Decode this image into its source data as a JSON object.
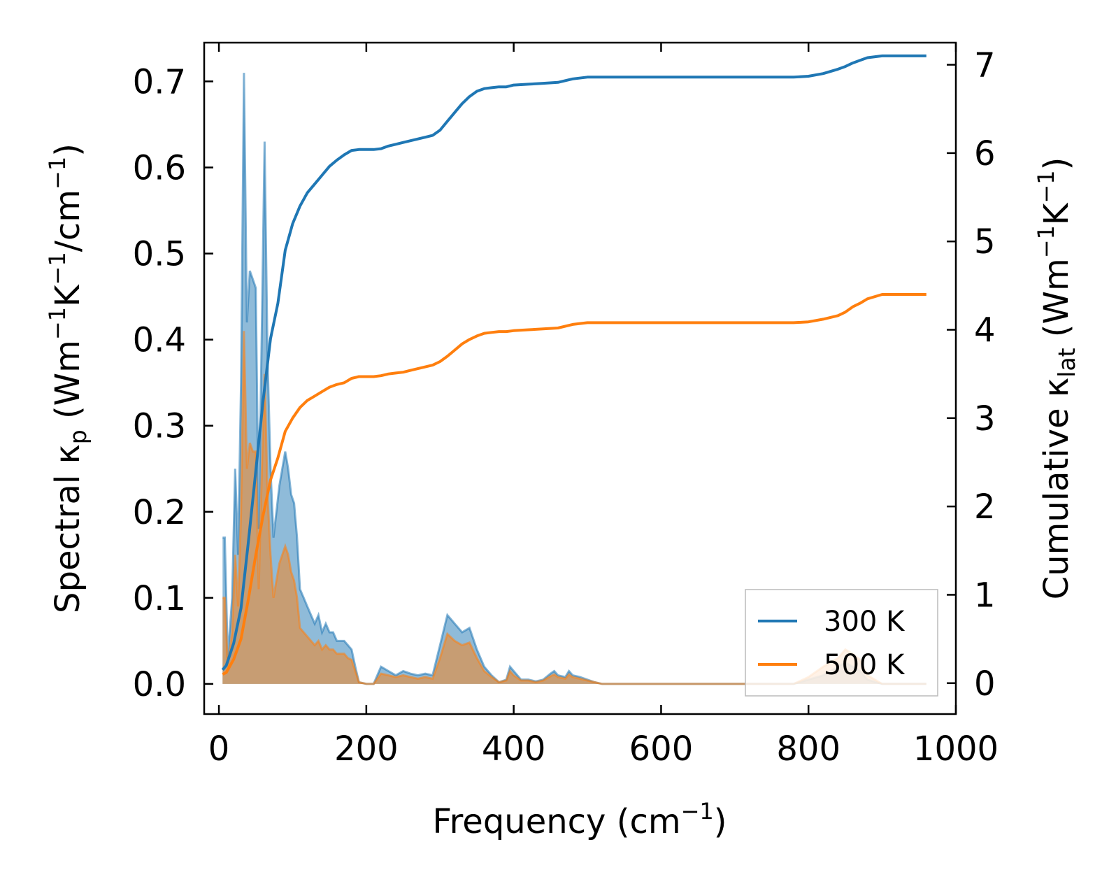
{
  "chart_data": {
    "type": "line+area",
    "xlabel": "Frequency (cm⁻¹)",
    "ylabel_left": "Spectral κ_p (Wm⁻¹K⁻¹/cm⁻¹)",
    "ylabel_right": "Cumulative κ_lat (Wm⁻¹K⁻¹)",
    "xlim": [
      -20,
      1000
    ],
    "ylim_left": [
      -0.035,
      0.745
    ],
    "ylim_right": [
      -0.35,
      7.25
    ],
    "x_ticks": [
      0,
      200,
      400,
      600,
      800,
      1000
    ],
    "y_left_ticks": [
      "0.0",
      "0.1",
      "0.2",
      "0.3",
      "0.4",
      "0.5",
      "0.6",
      "0.7"
    ],
    "y_right_ticks": [
      "0",
      "1",
      "2",
      "3",
      "4",
      "5",
      "6",
      "7"
    ],
    "colors": {
      "300K": "#1f77b4",
      "500K": "#ff7f0e"
    },
    "legend": {
      "position": "lower-right",
      "entries": [
        "300 K",
        "500 K"
      ]
    },
    "spectral_series": [
      {
        "name": "300 K spectral",
        "x": [
          5,
          8,
          12,
          18,
          22,
          26,
          30,
          34,
          38,
          42,
          46,
          50,
          54,
          58,
          62,
          66,
          70,
          74,
          78,
          82,
          86,
          90,
          94,
          98,
          102,
          106,
          110,
          115,
          120,
          125,
          130,
          135,
          140,
          145,
          150,
          155,
          160,
          165,
          170,
          175,
          180,
          185,
          190,
          200,
          210,
          220,
          230,
          240,
          250,
          260,
          270,
          280,
          290,
          300,
          310,
          320,
          330,
          340,
          350,
          360,
          370,
          380,
          390,
          395,
          400,
          410,
          420,
          430,
          440,
          450,
          455,
          460,
          470,
          475,
          480,
          490,
          500,
          510,
          520,
          600,
          700,
          780,
          800,
          820,
          840,
          850,
          860,
          870,
          880,
          900,
          960
        ],
        "y": [
          0.17,
          0.17,
          0.03,
          0.1,
          0.25,
          0.15,
          0.35,
          0.71,
          0.42,
          0.48,
          0.47,
          0.46,
          0.18,
          0.4,
          0.63,
          0.38,
          0.25,
          0.17,
          0.2,
          0.23,
          0.25,
          0.27,
          0.25,
          0.22,
          0.21,
          0.17,
          0.11,
          0.1,
          0.09,
          0.08,
          0.07,
          0.08,
          0.06,
          0.07,
          0.06,
          0.06,
          0.05,
          0.05,
          0.05,
          0.045,
          0.04,
          0.02,
          0.002,
          0.0,
          0.0,
          0.02,
          0.015,
          0.01,
          0.015,
          0.012,
          0.01,
          0.012,
          0.01,
          0.045,
          0.08,
          0.07,
          0.06,
          0.065,
          0.04,
          0.02,
          0.01,
          0.002,
          0.005,
          0.02,
          0.015,
          0.005,
          0.005,
          0.003,
          0.005,
          0.012,
          0.015,
          0.01,
          0.008,
          0.015,
          0.01,
          0.008,
          0.005,
          0.002,
          0.0,
          0.0,
          0.0,
          0.0,
          0.005,
          0.01,
          0.02,
          0.025,
          0.02,
          0.015,
          0.005,
          0.0,
          0.0
        ]
      },
      {
        "name": "500 K spectral",
        "x": [
          5,
          8,
          12,
          18,
          22,
          26,
          30,
          34,
          38,
          42,
          46,
          50,
          54,
          58,
          62,
          66,
          70,
          74,
          78,
          82,
          86,
          90,
          94,
          98,
          102,
          106,
          110,
          115,
          120,
          125,
          130,
          135,
          140,
          145,
          150,
          155,
          160,
          165,
          170,
          175,
          180,
          185,
          190,
          200,
          210,
          220,
          230,
          240,
          250,
          260,
          270,
          280,
          290,
          300,
          310,
          320,
          330,
          340,
          350,
          360,
          370,
          380,
          390,
          395,
          400,
          410,
          420,
          430,
          440,
          450,
          455,
          460,
          470,
          475,
          480,
          490,
          500,
          510,
          520,
          600,
          700,
          780,
          800,
          820,
          840,
          850,
          860,
          870,
          880,
          900,
          960
        ],
        "y": [
          0.1,
          0.1,
          0.02,
          0.06,
          0.15,
          0.09,
          0.2,
          0.41,
          0.25,
          0.28,
          0.27,
          0.27,
          0.11,
          0.24,
          0.36,
          0.22,
          0.15,
          0.1,
          0.12,
          0.14,
          0.15,
          0.16,
          0.15,
          0.13,
          0.12,
          0.1,
          0.065,
          0.06,
          0.055,
          0.05,
          0.045,
          0.05,
          0.04,
          0.045,
          0.04,
          0.04,
          0.035,
          0.035,
          0.035,
          0.03,
          0.028,
          0.015,
          0.002,
          0.0,
          0.0,
          0.012,
          0.01,
          0.008,
          0.01,
          0.008,
          0.006,
          0.008,
          0.006,
          0.03,
          0.058,
          0.05,
          0.045,
          0.048,
          0.03,
          0.015,
          0.008,
          0.002,
          0.004,
          0.015,
          0.01,
          0.004,
          0.004,
          0.002,
          0.004,
          0.009,
          0.011,
          0.008,
          0.006,
          0.011,
          0.008,
          0.006,
          0.004,
          0.002,
          0.0,
          0.0,
          0.0,
          0.0,
          0.008,
          0.02,
          0.03,
          0.04,
          0.035,
          0.028,
          0.01,
          0.0,
          0.0
        ]
      }
    ],
    "cumulative_series": [
      {
        "name": "300 K",
        "x": [
          5,
          10,
          20,
          30,
          40,
          50,
          60,
          70,
          80,
          90,
          100,
          110,
          120,
          130,
          140,
          150,
          160,
          170,
          180,
          190,
          200,
          210,
          220,
          230,
          240,
          250,
          260,
          270,
          280,
          290,
          300,
          310,
          320,
          330,
          340,
          350,
          360,
          370,
          380,
          390,
          400,
          420,
          440,
          460,
          480,
          500,
          520,
          600,
          700,
          780,
          800,
          820,
          840,
          850,
          860,
          870,
          880,
          900,
          960
        ],
        "y": [
          0.15,
          0.2,
          0.45,
          0.85,
          1.6,
          2.4,
          3.2,
          3.9,
          4.3,
          4.9,
          5.2,
          5.4,
          5.55,
          5.65,
          5.75,
          5.85,
          5.92,
          5.98,
          6.03,
          6.04,
          6.04,
          6.04,
          6.05,
          6.08,
          6.1,
          6.12,
          6.14,
          6.16,
          6.18,
          6.2,
          6.26,
          6.36,
          6.46,
          6.56,
          6.64,
          6.7,
          6.73,
          6.74,
          6.75,
          6.75,
          6.77,
          6.78,
          6.79,
          6.8,
          6.84,
          6.86,
          6.86,
          6.86,
          6.86,
          6.86,
          6.87,
          6.9,
          6.95,
          6.98,
          7.02,
          7.05,
          7.08,
          7.1,
          7.1
        ]
      },
      {
        "name": "500 K",
        "x": [
          5,
          10,
          20,
          30,
          40,
          50,
          60,
          70,
          80,
          90,
          100,
          110,
          120,
          130,
          140,
          150,
          160,
          170,
          180,
          190,
          200,
          210,
          220,
          230,
          240,
          250,
          260,
          270,
          280,
          290,
          300,
          310,
          320,
          330,
          340,
          350,
          360,
          370,
          380,
          390,
          400,
          420,
          440,
          460,
          480,
          500,
          520,
          600,
          700,
          780,
          800,
          820,
          840,
          850,
          860,
          870,
          880,
          900,
          960
        ],
        "y": [
          0.1,
          0.12,
          0.27,
          0.5,
          0.95,
          1.45,
          1.9,
          2.3,
          2.55,
          2.85,
          3.0,
          3.12,
          3.2,
          3.25,
          3.3,
          3.35,
          3.38,
          3.4,
          3.45,
          3.47,
          3.47,
          3.47,
          3.48,
          3.5,
          3.51,
          3.52,
          3.54,
          3.56,
          3.58,
          3.6,
          3.64,
          3.7,
          3.77,
          3.84,
          3.89,
          3.93,
          3.96,
          3.97,
          3.98,
          3.98,
          3.99,
          4.0,
          4.01,
          4.02,
          4.06,
          4.08,
          4.08,
          4.08,
          4.08,
          4.08,
          4.09,
          4.12,
          4.16,
          4.2,
          4.26,
          4.3,
          4.35,
          4.4,
          4.4
        ]
      }
    ]
  }
}
